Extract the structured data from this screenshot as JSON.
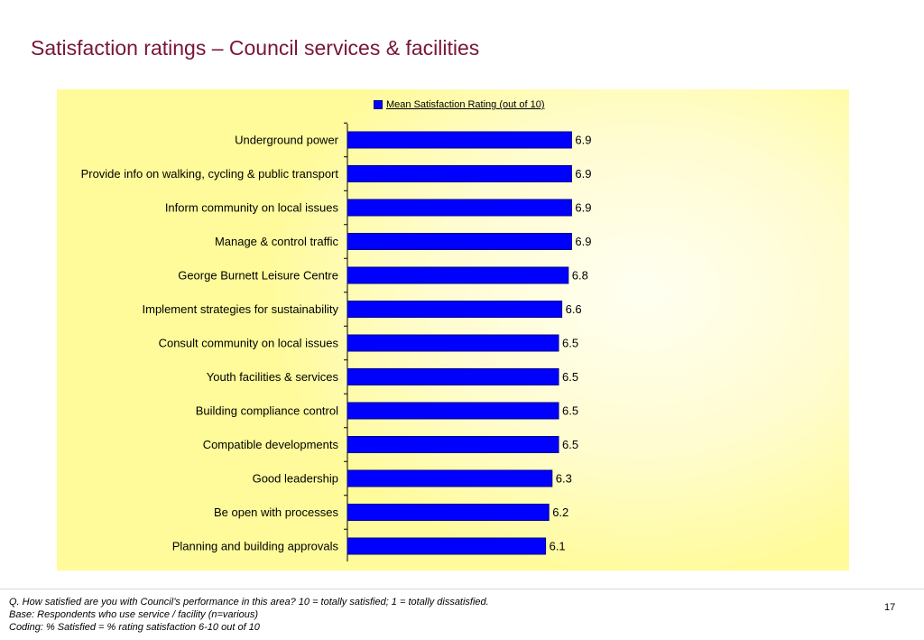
{
  "page": {
    "title": "Satisfaction ratings – Council services & facilities",
    "footnotes": {
      "question": "Q. How satisfied are you with Council’s performance in this area?  10 = totally satisfied; 1 = totally dissatisfied.",
      "base": "Base: Respondents who use service / facility (n=various)",
      "coding": "Coding: % Satisfied = % rating satisfaction 6-10 out of 10"
    },
    "page_number": "17"
  },
  "colors": {
    "bar_fill": "#0000ff",
    "bar_stroke": "#00008b",
    "title": "#7a1538",
    "panel_background": "#fffb9a"
  },
  "chart_data": {
    "type": "bar",
    "orientation": "horizontal",
    "categories": [
      "Underground power",
      "Provide info on walking, cycling & public transport",
      "Inform community on local issues",
      "Manage & control traffic",
      "George Burnett Leisure Centre",
      "Implement strategies for sustainability",
      "Consult  community on local issues",
      "Youth facilities & services ",
      "Building compliance control",
      "Compatible developments",
      "Good leadership",
      "Be open with processes",
      "Planning and building approvals"
    ],
    "series": [
      {
        "name": "Mean Satisfaction Rating (out of 10)",
        "values": [
          6.9,
          6.9,
          6.9,
          6.9,
          6.8,
          6.6,
          6.5,
          6.5,
          6.5,
          6.5,
          6.3,
          6.2,
          6.1
        ],
        "labels": [
          "6.9",
          "6.9",
          "6.9",
          "6.9",
          "6.8",
          "6.6",
          "6.5",
          "6.5",
          "6.5",
          "6.5",
          "6.3",
          "6.2",
          "6.1"
        ]
      }
    ],
    "xlim": [
      0,
      10
    ],
    "legend": "top-center",
    "grid": false
  }
}
